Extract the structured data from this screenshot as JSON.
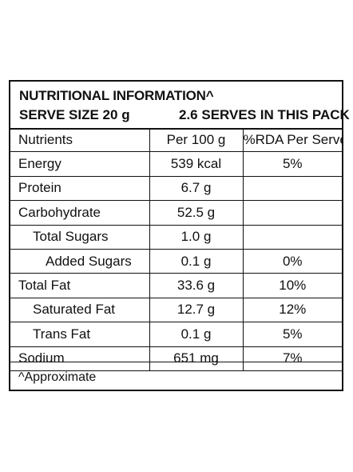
{
  "header": {
    "title": "NUTRITIONAL INFORMATION^",
    "serve_size": "SERVE SIZE 20 g",
    "serves_per_pack": "2.6 SERVES IN THIS PACK"
  },
  "columns": {
    "nutrients": "Nutrients",
    "per_100g": "Per 100 g",
    "rda_per_serve": "%RDA Per Serve"
  },
  "rows": [
    {
      "name": "Energy",
      "per_100g": "539 kcal",
      "rda": "5%"
    },
    {
      "name": "Protein",
      "per_100g": "6.7 g",
      "rda": ""
    },
    {
      "name": "Carbohydrate",
      "per_100g": "52.5 g",
      "rda": ""
    },
    {
      "name": "Total Sugars",
      "per_100g": "1.0 g",
      "rda": ""
    },
    {
      "name": "Added Sugars",
      "per_100g": "0.1 g",
      "rda": "0%"
    },
    {
      "name": "Total Fat",
      "per_100g": "33.6 g",
      "rda": "10%"
    },
    {
      "name": "Saturated Fat",
      "per_100g": "12.7 g",
      "rda": "12%"
    },
    {
      "name": "Trans Fat",
      "per_100g": "0.1 g",
      "rda": "5%"
    },
    {
      "name": "Sodium",
      "per_100g": "651 mg",
      "rda": "7%"
    }
  ],
  "footnote": "^Approximate"
}
